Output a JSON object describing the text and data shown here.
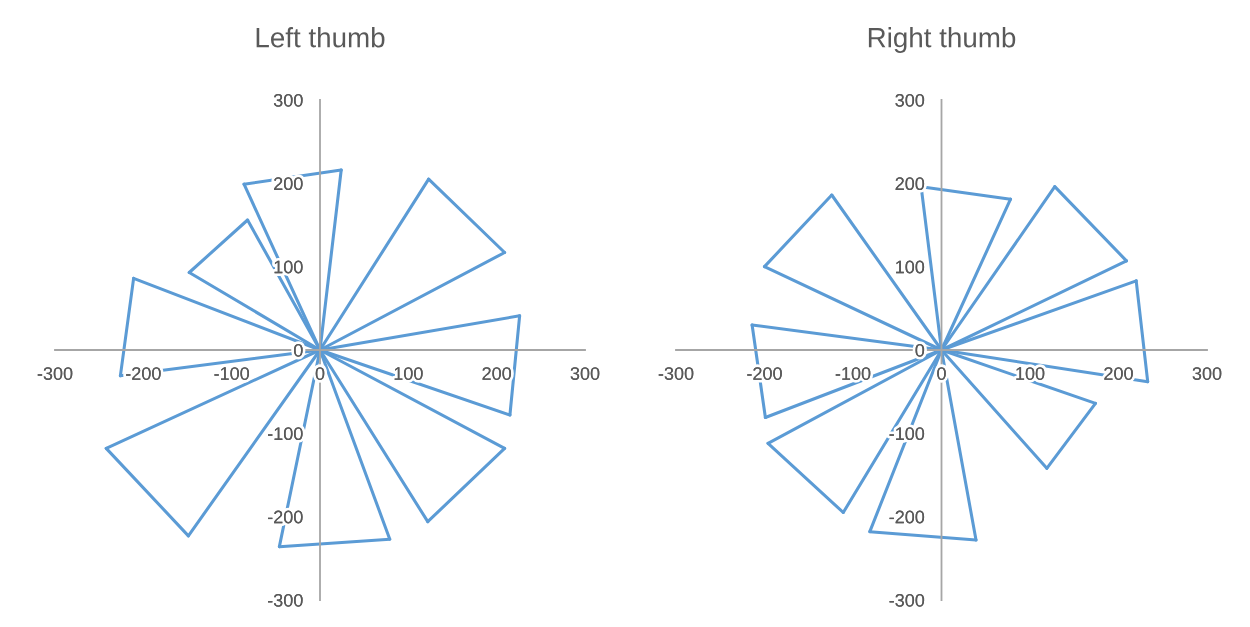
{
  "chart_data": [
    {
      "type": "line",
      "title": "Left thumb",
      "marker": "none",
      "line_style": "solid",
      "grid": false,
      "legend": false,
      "xlim": [
        -300,
        300
      ],
      "ylim": [
        -300,
        300
      ],
      "xticks": [
        -300,
        -200,
        -100,
        0,
        100,
        200,
        300
      ],
      "yticks": [
        -300,
        -200,
        -100,
        0,
        100,
        200,
        300
      ],
      "series": [
        {
          "color": "#5b9bd5",
          "x": [
            -86,
            0,
            122
          ],
          "values": [
            199,
            0,
            -206
          ]
        },
        {
          "color": "#5b9bd5",
          "x": [
            -46,
            0,
            24
          ],
          "values": [
            -236,
            0,
            216
          ]
        },
        {
          "color": "#5b9bd5",
          "x": [
            -149,
            0,
            123
          ],
          "values": [
            -223,
            0,
            205
          ]
        },
        {
          "color": "#5b9bd5",
          "x": [
            -242,
            0,
            209
          ],
          "values": [
            -118,
            0,
            117
          ]
        },
        {
          "color": "#5b9bd5",
          "x": [
            -226,
            0,
            226
          ],
          "values": [
            -31,
            0,
            41
          ]
        },
        {
          "color": "#5b9bd5",
          "x": [
            -211,
            0,
            215
          ],
          "values": [
            86,
            0,
            -78
          ]
        },
        {
          "color": "#5b9bd5",
          "x": [
            -148,
            0,
            209
          ],
          "values": [
            93,
            0,
            -118
          ]
        },
        {
          "color": "#5b9bd5",
          "x": [
            -82,
            0,
            79
          ],
          "values": [
            156,
            0,
            -227
          ]
        },
        {
          "color": "#5b9bd5",
          "x": [
            -86,
            24
          ],
          "values": [
            199,
            216
          ]
        },
        {
          "color": "#5b9bd5",
          "x": [
            123,
            209
          ],
          "values": [
            205,
            117
          ]
        },
        {
          "color": "#5b9bd5",
          "x": [
            215,
            226
          ],
          "values": [
            -78,
            41
          ]
        },
        {
          "color": "#5b9bd5",
          "x": [
            122,
            209
          ],
          "values": [
            -206,
            -118
          ]
        },
        {
          "color": "#5b9bd5",
          "x": [
            -46,
            79
          ],
          "values": [
            -236,
            -227
          ]
        },
        {
          "color": "#5b9bd5",
          "x": [
            -242,
            -149
          ],
          "values": [
            -118,
            -223
          ]
        },
        {
          "color": "#5b9bd5",
          "x": [
            -226,
            -211
          ],
          "values": [
            -31,
            86
          ]
        },
        {
          "color": "#5b9bd5",
          "x": [
            -148,
            -82
          ],
          "values": [
            93,
            156
          ]
        }
      ]
    },
    {
      "type": "line",
      "title": "Right thumb",
      "marker": "none",
      "line_style": "solid",
      "grid": false,
      "legend": false,
      "xlim": [
        -300,
        300
      ],
      "ylim": [
        -300,
        300
      ],
      "xticks": [
        -300,
        -200,
        -100,
        0,
        100,
        200,
        300
      ],
      "yticks": [
        -300,
        -200,
        -100,
        0,
        100,
        200,
        300
      ],
      "series": [
        {
          "color": "#5b9bd5",
          "x": [
            -23,
            0,
            39
          ],
          "values": [
            196,
            0,
            -228
          ]
        },
        {
          "color": "#5b9bd5",
          "x": [
            -81,
            0,
            78
          ],
          "values": [
            -218,
            0,
            181
          ]
        },
        {
          "color": "#5b9bd5",
          "x": [
            -111,
            0,
            128
          ],
          "values": [
            -195,
            0,
            196
          ]
        },
        {
          "color": "#5b9bd5",
          "x": [
            -196,
            0,
            209
          ],
          "values": [
            -112,
            0,
            107
          ]
        },
        {
          "color": "#5b9bd5",
          "x": [
            -199,
            0,
            220
          ],
          "values": [
            -81,
            0,
            83
          ]
        },
        {
          "color": "#5b9bd5",
          "x": [
            -214,
            0,
            233
          ],
          "values": [
            30,
            0,
            -38
          ]
        },
        {
          "color": "#5b9bd5",
          "x": [
            -200,
            0,
            174
          ],
          "values": [
            100,
            0,
            -64
          ]
        },
        {
          "color": "#5b9bd5",
          "x": [
            -124,
            0,
            119
          ],
          "values": [
            186,
            0,
            -142
          ]
        },
        {
          "color": "#5b9bd5",
          "x": [
            -23,
            78
          ],
          "values": [
            196,
            181
          ]
        },
        {
          "color": "#5b9bd5",
          "x": [
            128,
            209
          ],
          "values": [
            196,
            107
          ]
        },
        {
          "color": "#5b9bd5",
          "x": [
            220,
            233
          ],
          "values": [
            83,
            -38
          ]
        },
        {
          "color": "#5b9bd5",
          "x": [
            119,
            174
          ],
          "values": [
            -142,
            -64
          ]
        },
        {
          "color": "#5b9bd5",
          "x": [
            -81,
            39
          ],
          "values": [
            -218,
            -228
          ]
        },
        {
          "color": "#5b9bd5",
          "x": [
            -196,
            -111
          ],
          "values": [
            -112,
            -195
          ]
        },
        {
          "color": "#5b9bd5",
          "x": [
            -214,
            -199
          ],
          "values": [
            30,
            -81
          ]
        },
        {
          "color": "#5b9bd5",
          "x": [
            -200,
            -124
          ],
          "values": [
            100,
            186
          ]
        }
      ]
    }
  ]
}
